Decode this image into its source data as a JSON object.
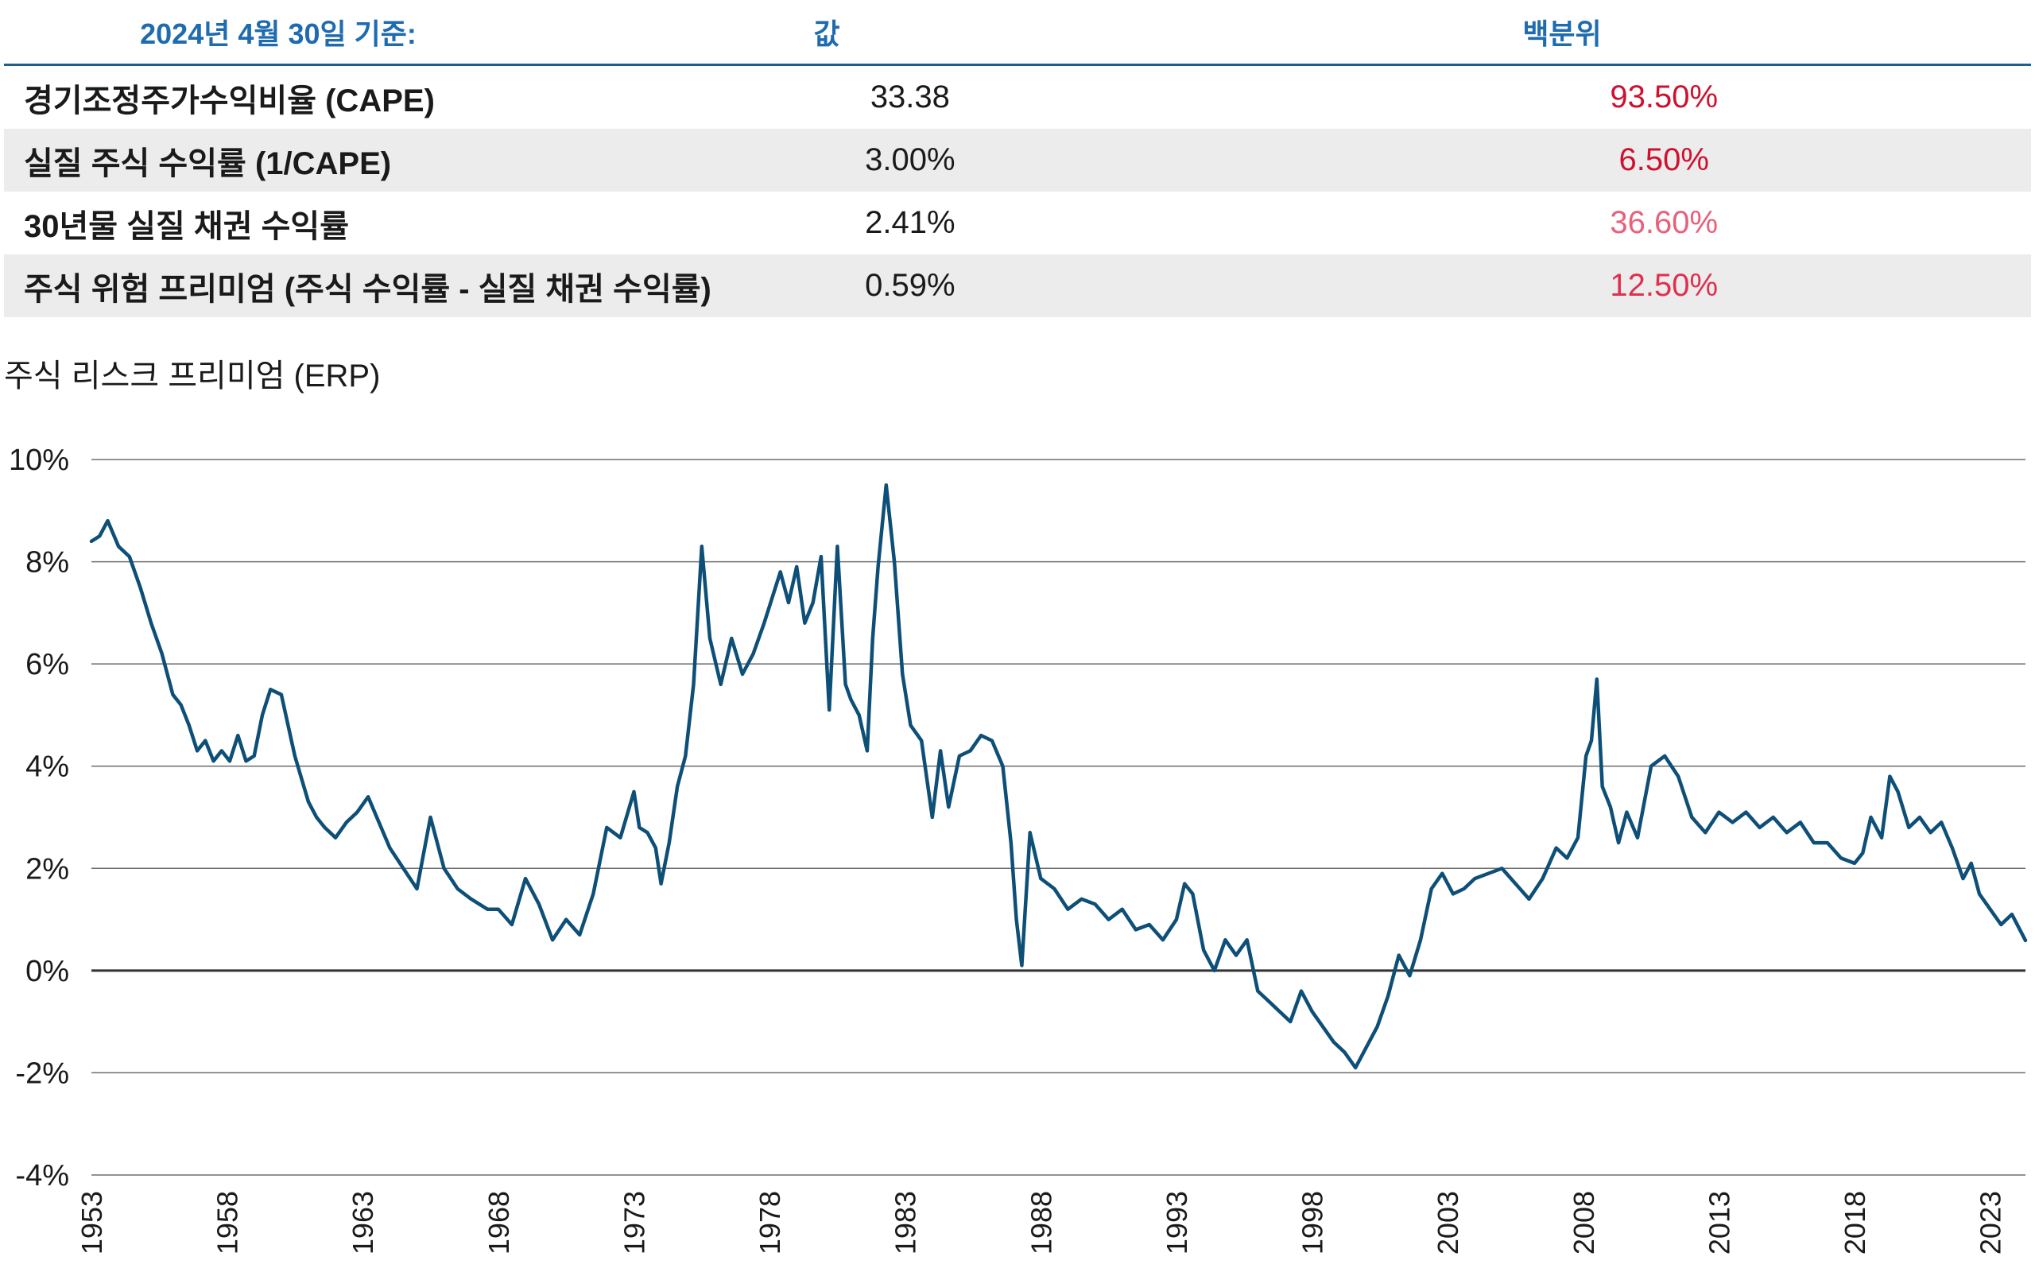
{
  "table": {
    "headers": [
      "2024년 4월 30일 기준:",
      "값",
      "백분위"
    ],
    "rows": [
      {
        "label": "경기조정주가수익비율 (CAPE)",
        "value": "33.38",
        "percentile": "93.50%",
        "pct_color": "#d0102e"
      },
      {
        "label": "실질 주식 수익률 (1/CAPE)",
        "value": "3.00%",
        "percentile": "6.50%",
        "pct_color": "#d0102e"
      },
      {
        "label": "30년물 실질 채권 수익률",
        "value": "2.41%",
        "percentile": "36.60%",
        "pct_color": "#e8607a"
      },
      {
        "label": "주식 위험 프리미엄 (주식 수익률 - 실질 채권 수익률)",
        "value": "0.59%",
        "percentile": "12.50%",
        "pct_color": "#e0304e"
      }
    ]
  },
  "chart_data": {
    "type": "line",
    "title": "주식 리스크 프리미엄 (ERP)",
    "xlabel": "",
    "ylabel": "",
    "ylim": [
      -4,
      10
    ],
    "yticks": [
      "10%",
      "8%",
      "6%",
      "4%",
      "2%",
      "0%",
      "-2%",
      "-4%"
    ],
    "xlim": [
      1953,
      2024.3
    ],
    "xticks": [
      "1953",
      "1958",
      "1963",
      "1968",
      "1973",
      "1978",
      "1983",
      "1988",
      "1993",
      "1998",
      "2003",
      "2008",
      "2013",
      "2018",
      "2023"
    ],
    "grid": true,
    "line_color": "#0e4f78",
    "series": [
      {
        "x": [
          1953.0,
          1953.3,
          1953.6,
          1954.0,
          1954.4,
          1954.8,
          1955.2,
          1955.6,
          1956.0,
          1956.3,
          1956.6,
          1956.9,
          1957.2,
          1957.5,
          1957.8,
          1958.1,
          1958.4,
          1958.7,
          1959.0,
          1959.3,
          1959.6,
          1960.0,
          1960.5,
          1961.0,
          1961.3,
          1961.6,
          1962.0,
          1962.4,
          1962.8,
          1963.2,
          1963.6,
          1964.0,
          1964.5,
          1965.0,
          1965.5,
          1966.0,
          1966.5,
          1967.0,
          1967.3,
          1967.6,
          1968.0,
          1968.5,
          1969.0,
          1969.5,
          1970.0,
          1970.5,
          1971.0,
          1971.5,
          1972.0,
          1972.5,
          1973.0,
          1973.2,
          1973.5,
          1973.8,
          1974.0,
          1974.3,
          1974.6,
          1974.9,
          1975.2,
          1975.5,
          1975.8,
          1976.2,
          1976.6,
          1977.0,
          1977.4,
          1977.8,
          1978.1,
          1978.4,
          1978.7,
          1979.0,
          1979.3,
          1979.6,
          1979.9,
          1980.2,
          1980.5,
          1980.8,
          1981.0,
          1981.3,
          1981.6,
          1981.8,
          1982.0,
          1982.3,
          1982.6,
          1982.9,
          1983.2,
          1983.6,
          1984.0,
          1984.3,
          1984.6,
          1985.0,
          1985.4,
          1985.8,
          1986.2,
          1986.6,
          1986.9,
          1987.1,
          1987.3,
          1987.6,
          1988.0,
          1988.5,
          1989.0,
          1989.5,
          1990.0,
          1990.5,
          1991.0,
          1991.5,
          1992.0,
          1992.5,
          1993.0,
          1993.3,
          1993.6,
          1994.0,
          1994.4,
          1994.8,
          1995.2,
          1995.6,
          1996.0,
          1996.4,
          1996.8,
          1997.2,
          1997.6,
          1998.0,
          1998.4,
          1998.8,
          1999.2,
          1999.6,
          2000.0,
          2000.4,
          2000.8,
          2001.2,
          2001.6,
          2002.0,
          2002.4,
          2002.8,
          2003.2,
          2003.6,
          2004.0,
          2004.5,
          2005.0,
          2005.5,
          2006.0,
          2006.5,
          2007.0,
          2007.4,
          2007.8,
          2008.1,
          2008.3,
          2008.5,
          2008.7,
          2009.0,
          2009.3,
          2009.6,
          2010.0,
          2010.5,
          2011.0,
          2011.5,
          2012.0,
          2012.5,
          2013.0,
          2013.5,
          2014.0,
          2014.5,
          2015.0,
          2015.5,
          2016.0,
          2016.5,
          2017.0,
          2017.5,
          2018.0,
          2018.3,
          2018.6,
          2019.0,
          2019.3,
          2019.6,
          2020.0,
          2020.4,
          2020.8,
          2021.2,
          2021.6,
          2022.0,
          2022.3,
          2022.6,
          2023.0,
          2023.4,
          2023.8,
          2024.3
        ],
        "y": [
          8.4,
          8.5,
          8.8,
          8.3,
          8.1,
          7.5,
          6.8,
          6.2,
          5.4,
          5.2,
          4.8,
          4.3,
          4.5,
          4.1,
          4.3,
          4.1,
          4.6,
          4.1,
          4.2,
          5.0,
          5.5,
          5.4,
          4.2,
          3.3,
          3.0,
          2.8,
          2.6,
          2.9,
          3.1,
          3.4,
          2.9,
          2.4,
          2.0,
          1.6,
          3.0,
          2.0,
          1.6,
          1.4,
          1.3,
          1.2,
          1.2,
          0.9,
          1.8,
          1.3,
          0.6,
          1.0,
          0.7,
          1.5,
          2.8,
          2.6,
          3.5,
          2.8,
          2.7,
          2.4,
          1.7,
          2.5,
          3.6,
          4.2,
          5.6,
          8.3,
          6.5,
          5.6,
          6.5,
          5.8,
          6.2,
          6.8,
          7.3,
          7.8,
          7.2,
          7.9,
          6.8,
          7.2,
          8.1,
          5.1,
          8.3,
          5.6,
          5.3,
          5.0,
          4.3,
          6.5,
          7.9,
          9.5,
          8.0,
          5.8,
          4.8,
          4.5,
          3.0,
          4.3,
          3.2,
          4.2,
          4.3,
          4.6,
          4.5,
          4.0,
          2.5,
          1.0,
          0.1,
          2.7,
          1.8,
          1.6,
          1.2,
          1.4,
          1.3,
          1.0,
          1.2,
          0.8,
          0.9,
          0.6,
          1.0,
          1.7,
          1.5,
          0.4,
          0.0,
          0.6,
          0.3,
          0.6,
          -0.4,
          -0.6,
          -0.8,
          -1.0,
          -0.4,
          -0.8,
          -1.1,
          -1.4,
          -1.6,
          -1.9,
          -1.5,
          -1.1,
          -0.5,
          0.3,
          -0.1,
          0.6,
          1.6,
          1.9,
          1.5,
          1.6,
          1.8,
          1.9,
          2.0,
          1.7,
          1.4,
          1.8,
          2.4,
          2.2,
          2.6,
          4.2,
          4.5,
          5.7,
          3.6,
          3.2,
          2.5,
          3.1,
          2.6,
          4.0,
          4.2,
          3.8,
          3.0,
          2.7,
          3.1,
          2.9,
          3.1,
          2.8,
          3.0,
          2.7,
          2.9,
          2.5,
          2.5,
          2.2,
          2.1,
          2.3,
          3.0,
          2.6,
          3.8,
          3.5,
          2.8,
          3.0,
          2.7,
          2.9,
          2.4,
          1.8,
          2.1,
          1.5,
          1.2,
          0.9,
          1.1,
          0.59
        ]
      }
    ]
  }
}
